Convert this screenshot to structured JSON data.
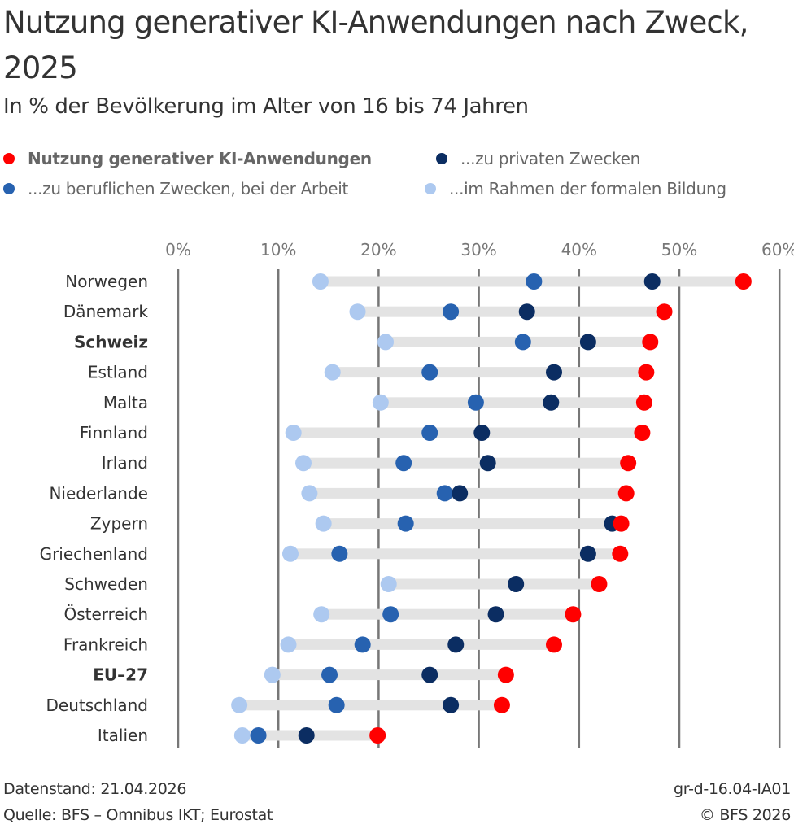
{
  "header": {
    "title": "Nutzung generativer KI-Anwendungen nach Zweck, 2025",
    "subtitle": "In % der Bevölkerung im Alter von 16 bis 74 Jahren"
  },
  "footer": {
    "data_status": "Datenstand: 21.04.2026",
    "source": "Quelle: BFS – Omnibus IKT; Eurostat",
    "graphic_id": "gr-d-16.04-IA01",
    "copyright": "© BFS 2026"
  },
  "chart_data": {
    "type": "scatter",
    "subtype": "dot-range (dumbbell)",
    "title": "Nutzung generativer KI-Anwendungen nach Zweck, 2025",
    "subtitle": "In % der Bevölkerung im Alter von 16 bis 74 Jahren",
    "xlabel": "",
    "ylabel": "",
    "xlim": [
      0,
      60
    ],
    "x_ticks": [
      0,
      10,
      20,
      30,
      40,
      50,
      60
    ],
    "x_tick_labels": [
      "0%",
      "10%",
      "20%",
      "30%",
      "40%",
      "50%",
      "60%"
    ],
    "x_axis_position": "top",
    "grid": true,
    "legend_position": "top",
    "categories": [
      "Norwegen",
      "Dänemark",
      "Schweiz",
      "Estland",
      "Malta",
      "Finnland",
      "Irland",
      "Niederlande",
      "Zypern",
      "Griechenland",
      "Schweden",
      "Österreich",
      "Frankreich",
      "EU–27",
      "Deutschland",
      "Italien"
    ],
    "highlighted_categories": [
      "Schweiz",
      "EU–27"
    ],
    "series": [
      {
        "key": "total",
        "name": "Nutzung generativer KI-Anwendungen",
        "color": "#ff0000",
        "legend_bold": true,
        "values": [
          56.4,
          48.5,
          47.1,
          46.7,
          46.5,
          46.3,
          44.9,
          44.7,
          44.2,
          44.1,
          42.0,
          39.4,
          37.5,
          32.7,
          32.3,
          19.9
        ]
      },
      {
        "key": "private",
        "name": "...zu privaten Zwecken",
        "color": "#0b2d62",
        "legend_bold": false,
        "values": [
          47.3,
          34.8,
          40.9,
          37.5,
          37.2,
          30.3,
          30.9,
          28.1,
          43.3,
          40.9,
          33.7,
          31.7,
          27.7,
          25.1,
          27.2,
          12.8
        ]
      },
      {
        "key": "work",
        "name": "...zu beruflichen Zwecken, bei der Arbeit",
        "color": "#2762b0",
        "legend_bold": false,
        "values": [
          35.5,
          27.2,
          34.4,
          25.1,
          29.7,
          25.1,
          22.5,
          26.6,
          22.7,
          16.1,
          null,
          21.2,
          18.4,
          15.1,
          15.8,
          8.0
        ]
      },
      {
        "key": "education",
        "name": "...im Rahmen der formalen Bildung",
        "color": "#adc9f0",
        "legend_bold": false,
        "values": [
          14.2,
          17.9,
          20.7,
          15.4,
          20.2,
          11.5,
          12.5,
          13.1,
          14.5,
          11.2,
          21.0,
          14.3,
          11.0,
          9.4,
          6.1,
          6.4
        ]
      }
    ],
    "colors": {
      "range_bar": "#e3e3e3",
      "gridline": "#777777"
    }
  }
}
